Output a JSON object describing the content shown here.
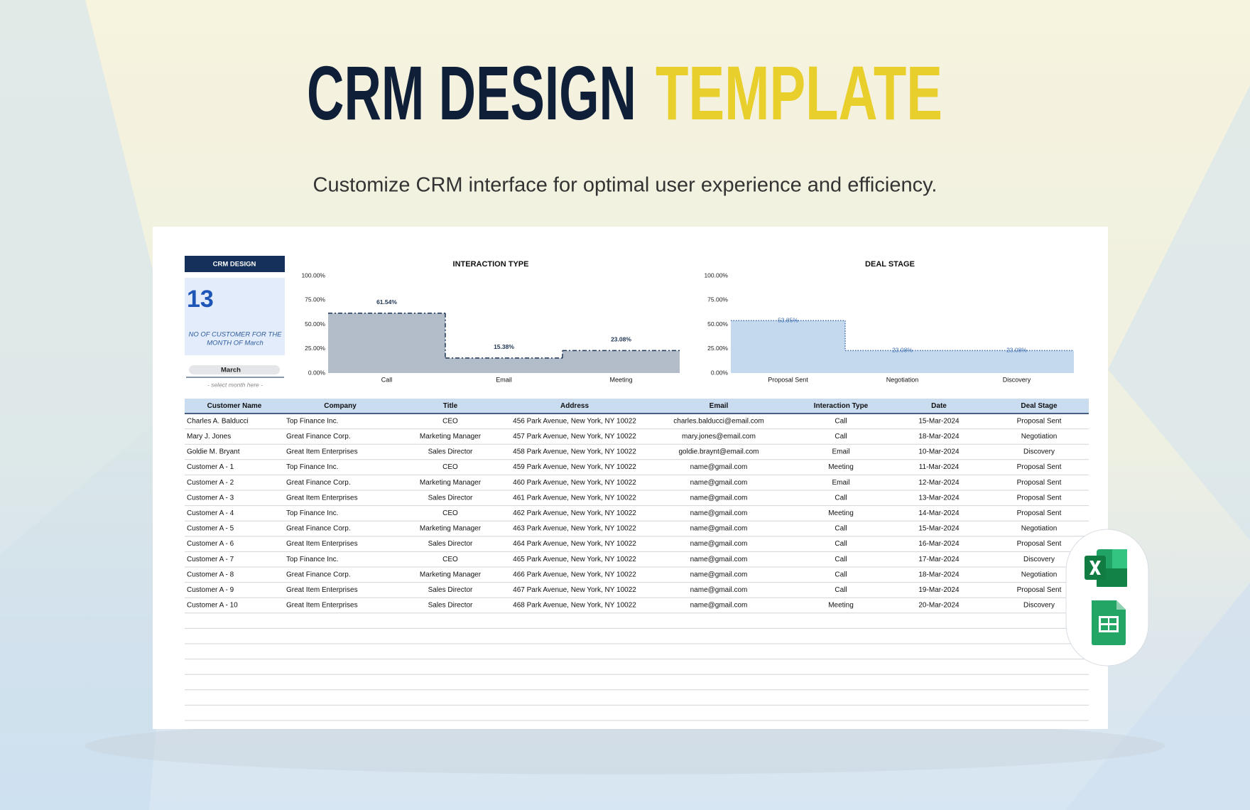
{
  "header": {
    "title_main": "CRM DESIGN",
    "title_accent": "TEMPLATE",
    "subtitle": "Customize CRM interface for optimal user experience and efficiency."
  },
  "panel": {
    "title": "CRM DESIGN",
    "count": "13",
    "caption_line1": "NO OF CUSTOMER FOR THE",
    "caption_line2": "MONTH OF March",
    "month": "March",
    "hint": "- select month here -"
  },
  "chart_data": [
    {
      "type": "area",
      "title": "INTERACTION TYPE",
      "categories": [
        "Call",
        "Email",
        "Meeting"
      ],
      "values": [
        61.54,
        15.38,
        23.08
      ],
      "value_labels": [
        "61.54%",
        "15.38%",
        "23.08%"
      ],
      "color": "#b3bdc9",
      "line_color": "#1e3554",
      "line_style": "dash-dot",
      "label_color": "#1e3554",
      "ylim": [
        0,
        100
      ],
      "yticks": [
        {
          "value": 0,
          "label": "0.00%"
        },
        {
          "value": 25,
          "label": "25.00%"
        },
        {
          "value": 50,
          "label": "50.00%"
        },
        {
          "value": 75,
          "label": "75.00%"
        },
        {
          "value": 100,
          "label": "100.00%"
        }
      ]
    },
    {
      "type": "area",
      "title": "DEAL STAGE",
      "categories": [
        "Proposal Sent",
        "Negotiation",
        "Discovery"
      ],
      "values": [
        53.85,
        23.08,
        23.08
      ],
      "value_labels": [
        "53.85%",
        "23.08%",
        "23.08%"
      ],
      "color": "#c5d9ee",
      "line_color": "#3f6fae",
      "line_style": "dotted",
      "label_color": "#3f6fae",
      "ylim": [
        0,
        100
      ],
      "yticks": [
        {
          "value": 0,
          "label": "0.00%"
        },
        {
          "value": 25,
          "label": "25.00%"
        },
        {
          "value": 50,
          "label": "50.00%"
        },
        {
          "value": 75,
          "label": "75.00%"
        },
        {
          "value": 100,
          "label": "100.00%"
        }
      ]
    }
  ],
  "table": {
    "columns": [
      "Customer Name",
      "Company",
      "Title",
      "Address",
      "Email",
      "Interaction Type",
      "Date",
      "Deal Stage"
    ],
    "rows": [
      [
        "Charles A. Balducci",
        "Top Finance Inc.",
        "CEO",
        "456 Park Avenue, New York, NY 10022",
        "charles.balducci@email.com",
        "Call",
        "15-Mar-2024",
        "Proposal Sent"
      ],
      [
        "Mary J. Jones",
        "Great Finance Corp.",
        "Marketing Manager",
        "457 Park Avenue, New York, NY 10022",
        "mary.jones@email.com",
        "Call",
        "18-Mar-2024",
        "Negotiation"
      ],
      [
        "Goldie M. Bryant",
        "Great Item Enterprises",
        "Sales Director",
        "458 Park Avenue, New York, NY 10022",
        "goldie.braynt@email.com",
        "Email",
        "10-Mar-2024",
        "Discovery"
      ],
      [
        "Customer A - 1",
        "Top Finance Inc.",
        "CEO",
        "459 Park Avenue, New York, NY 10022",
        "name@gmail.com",
        "Meeting",
        "11-Mar-2024",
        "Proposal Sent"
      ],
      [
        "Customer A - 2",
        "Great Finance Corp.",
        "Marketing Manager",
        "460 Park Avenue, New York, NY 10022",
        "name@gmail.com",
        "Email",
        "12-Mar-2024",
        "Proposal Sent"
      ],
      [
        "Customer A - 3",
        "Great Item Enterprises",
        "Sales Director",
        "461 Park Avenue, New York, NY 10022",
        "name@gmail.com",
        "Call",
        "13-Mar-2024",
        "Proposal Sent"
      ],
      [
        "Customer A - 4",
        "Top Finance Inc.",
        "CEO",
        "462 Park Avenue, New York, NY 10022",
        "name@gmail.com",
        "Meeting",
        "14-Mar-2024",
        "Proposal Sent"
      ],
      [
        "Customer A - 5",
        "Great Finance Corp.",
        "Marketing Manager",
        "463 Park Avenue, New York, NY 10022",
        "name@gmail.com",
        "Call",
        "15-Mar-2024",
        "Negotiation"
      ],
      [
        "Customer A - 6",
        "Great Item Enterprises",
        "Sales Director",
        "464 Park Avenue, New York, NY 10022",
        "name@gmail.com",
        "Call",
        "16-Mar-2024",
        "Proposal Sent"
      ],
      [
        "Customer A - 7",
        "Top Finance Inc.",
        "CEO",
        "465 Park Avenue, New York, NY 10022",
        "name@gmail.com",
        "Call",
        "17-Mar-2024",
        "Discovery"
      ],
      [
        "Customer A - 8",
        "Great Finance Corp.",
        "Marketing Manager",
        "466 Park Avenue, New York, NY 10022",
        "name@gmail.com",
        "Call",
        "18-Mar-2024",
        "Negotiation"
      ],
      [
        "Customer A - 9",
        "Great Item Enterprises",
        "Sales Director",
        "467 Park Avenue, New York, NY 10022",
        "name@gmail.com",
        "Call",
        "19-Mar-2024",
        "Proposal Sent"
      ],
      [
        "Customer A - 10",
        "Great Item Enterprises",
        "Sales Director",
        "468 Park Avenue, New York, NY 10022",
        "name@gmail.com",
        "Meeting",
        "20-Mar-2024",
        "Discovery"
      ]
    ]
  }
}
